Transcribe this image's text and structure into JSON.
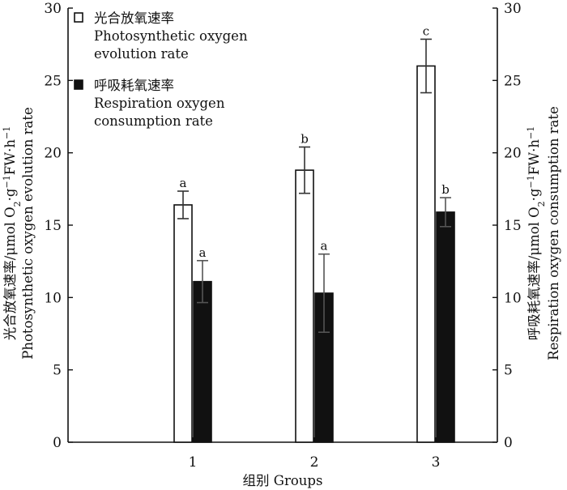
{
  "chart_data": {
    "type": "bar",
    "categories": [
      "1",
      "2",
      "3"
    ],
    "xlabel": "组别 Groups",
    "ylabel_left": [
      "光合放氧速率/μmol O",
      "2",
      "·g",
      "−1",
      "FW·h",
      "−1",
      "Photosynthetic oxygen evolution rate"
    ],
    "ylabel_right": [
      "呼吸耗氧速率/μmol O",
      "2",
      "·g",
      "−1",
      "FW·h",
      "−1",
      "Respiration oxygen consumption rate"
    ],
    "ylim": [
      0,
      30
    ],
    "yticks": [
      "0",
      "5",
      "10",
      "15",
      "20",
      "25",
      "30"
    ],
    "grid": false,
    "legend_position": "top-left",
    "series": [
      {
        "name": "光合放氧速率 Photosynthetic oxygen evolution rate",
        "legend_lines": [
          "光合放氧速率",
          "Photosynthetic oxygen",
          "evolution rate"
        ],
        "fill": "#ffffff",
        "stroke": "#111111",
        "values": [
          16.4,
          18.8,
          26.0
        ],
        "errors": [
          0.95,
          1.6,
          1.85
        ],
        "labels": [
          "a",
          "b",
          "c"
        ]
      },
      {
        "name": "呼吸耗氧速率 Respiration oxygen consumption rate",
        "legend_lines": [
          "呼吸耗氧速率",
          "Respiration oxygen",
          "consumption rate"
        ],
        "fill": "#111111",
        "stroke": "#111111",
        "values": [
          11.1,
          10.3,
          15.9
        ],
        "errors": [
          1.45,
          2.7,
          1.0
        ],
        "labels": [
          "a",
          "a",
          "b"
        ]
      }
    ]
  }
}
